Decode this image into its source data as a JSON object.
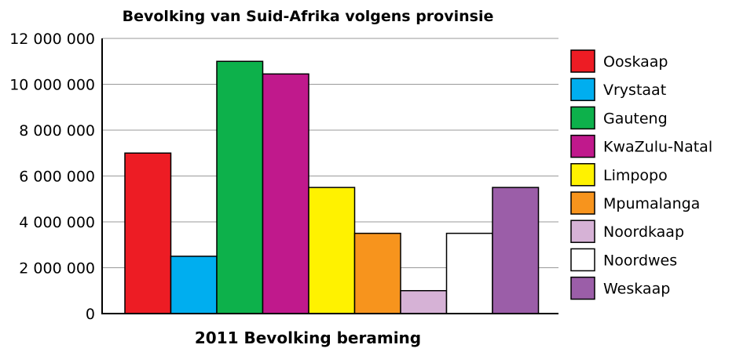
{
  "chart_data": {
    "type": "bar",
    "title": "Bevolking van Suid-Afrika volgens provinsie",
    "xlabel": "2011 Bevolking beraming",
    "ylabel": "",
    "ylim": [
      0,
      12000000
    ],
    "ytick_values": [
      0,
      2000000,
      4000000,
      6000000,
      8000000,
      10000000,
      12000000
    ],
    "ytick_labels": [
      "0",
      "2 000 000",
      "4 000 000",
      "6 000 000",
      "8 000 000",
      "10 000 000",
      "12 000 000"
    ],
    "grid": true,
    "legend_position": "right",
    "categories": [
      "Ooskaap",
      "Vrystaat",
      "Gauteng",
      "KwaZulu-Natal",
      "Limpopo",
      "Mpumalanga",
      "Noordkaap",
      "Noordwes",
      "Weskaap"
    ],
    "values": [
      7000000,
      2500000,
      11000000,
      10450000,
      5500000,
      3500000,
      1000000,
      3500000,
      5500000
    ],
    "colors": [
      "#ed1c24",
      "#00aeef",
      "#0db14b",
      "#c0198c",
      "#fff200",
      "#f7941d",
      "#d6b2d6",
      "#ffffff",
      "#9b5ea8"
    ]
  }
}
